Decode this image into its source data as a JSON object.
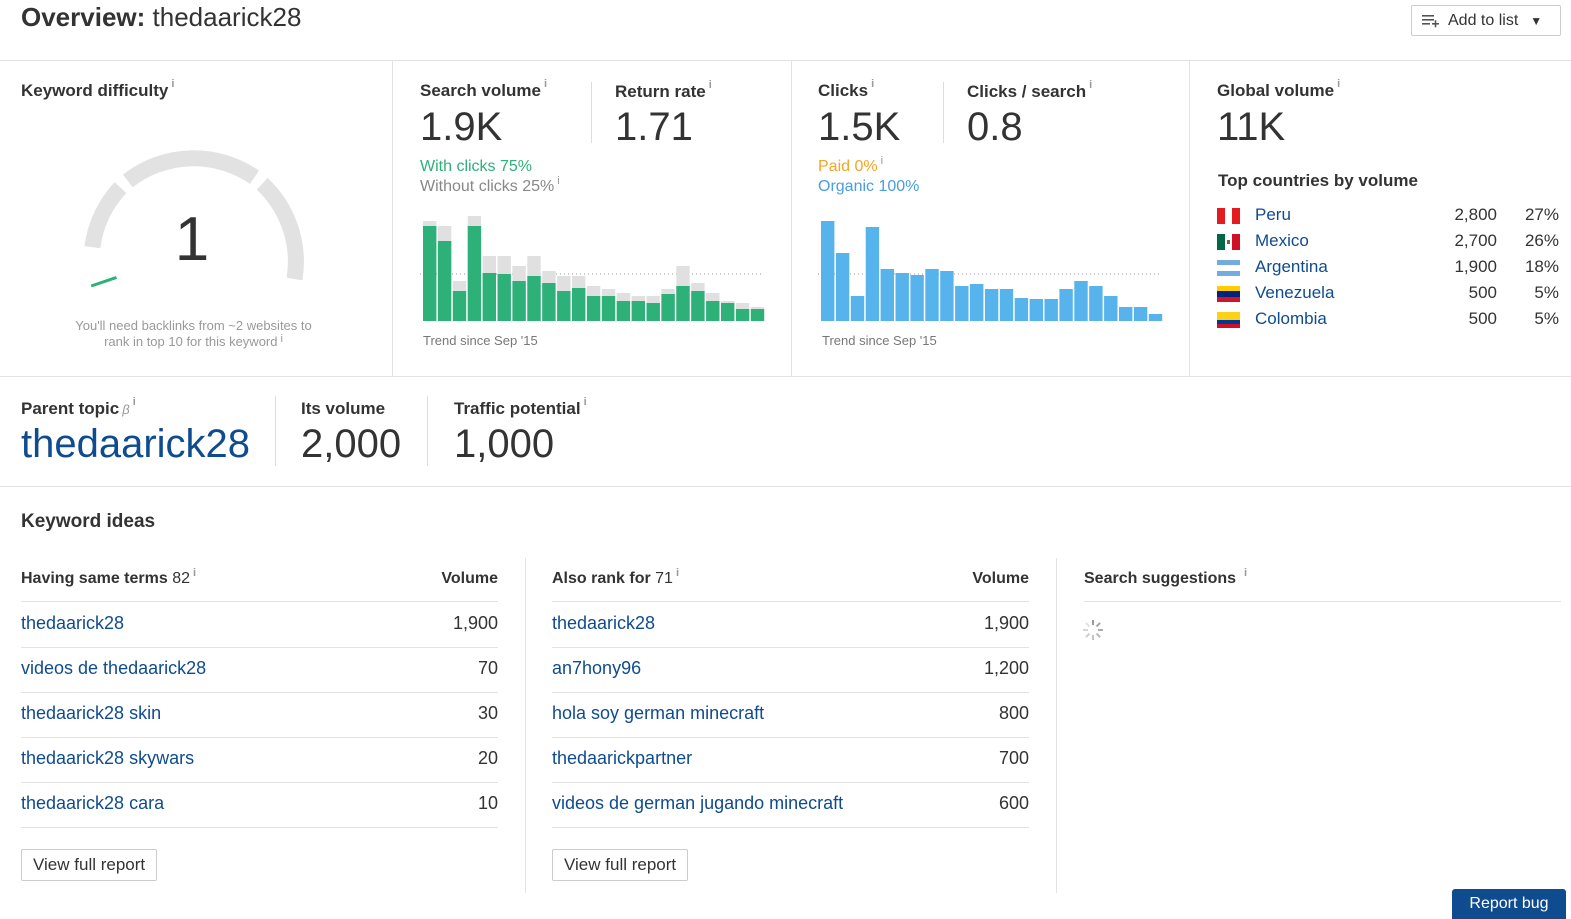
{
  "header": {
    "title_prefix": "Overview:",
    "title_keyword": "thedaarick28",
    "add_to_list_label": "Add to list"
  },
  "keyword_difficulty": {
    "label": "Keyword difficulty",
    "value": "1",
    "score": 1,
    "note_line1": "You'll need backlinks from ~2 websites to",
    "note_line2": "rank in top 10 for this keyword"
  },
  "search_volume": {
    "label": "Search volume",
    "value": "1.9K",
    "with_clicks": "With clicks 75%",
    "without_clicks": "Without clicks 25%",
    "trend_label": "Trend since Sep '15"
  },
  "return_rate": {
    "label": "Return rate",
    "value": "1.71"
  },
  "clicks": {
    "label": "Clicks",
    "value": "1.5K",
    "paid": "Paid 0%",
    "organic": "Organic 100%",
    "trend_label": "Trend since Sep '15"
  },
  "clicks_per_search": {
    "label": "Clicks / search",
    "value": "0.8"
  },
  "global_volume": {
    "label": "Global volume",
    "value": "11K",
    "countries_title": "Top countries by volume",
    "countries": [
      {
        "name": "Peru",
        "volume": "2,800",
        "percent": "27%",
        "flag": "peru-flag"
      },
      {
        "name": "Mexico",
        "volume": "2,700",
        "percent": "26%",
        "flag": "mexico-flag"
      },
      {
        "name": "Argentina",
        "volume": "1,900",
        "percent": "18%",
        "flag": "argentina-flag"
      },
      {
        "name": "Venezuela",
        "volume": "500",
        "percent": "5%",
        "flag": "venezuela-flag"
      },
      {
        "name": "Colombia",
        "volume": "500",
        "percent": "5%",
        "flag": "colombia-flag"
      }
    ]
  },
  "parent_topic": {
    "label": "Parent topic",
    "beta": "β",
    "value": "thedaarick28",
    "its_volume_label": "Its volume",
    "its_volume": "2,000",
    "traffic_potential_label": "Traffic potential",
    "traffic_potential": "1,000"
  },
  "keyword_ideas": {
    "title": "Keyword ideas",
    "same_terms": {
      "label": "Having same terms",
      "count": "82",
      "volume_header": "Volume",
      "rows": [
        {
          "keyword": "thedaarick28",
          "volume": "1,900"
        },
        {
          "keyword": "videos de thedaarick28",
          "volume": "70"
        },
        {
          "keyword": "thedaarick28 skin",
          "volume": "30"
        },
        {
          "keyword": "thedaarick28 skywars",
          "volume": "20"
        },
        {
          "keyword": "thedaarick28 cara",
          "volume": "10"
        }
      ],
      "button": "View full report"
    },
    "also_rank": {
      "label": "Also rank for",
      "count": "71",
      "volume_header": "Volume",
      "rows": [
        {
          "keyword": "thedaarick28",
          "volume": "1,900"
        },
        {
          "keyword": "an7hony96",
          "volume": "1,200"
        },
        {
          "keyword": "hola soy german minecraft",
          "volume": "800"
        },
        {
          "keyword": "thedaarickpartner",
          "volume": "700"
        },
        {
          "keyword": "videos de german jugando minecraft",
          "volume": "600"
        }
      ],
      "button": "View full report"
    },
    "suggestions": {
      "label": "Search suggestions"
    }
  },
  "report_bug": "Report bug",
  "colors": {
    "link": "#0f4b8f",
    "green": "#2eb079",
    "gray_bar": "#e0e0e0",
    "blue": "#56b3ec",
    "paid": "#f5a623",
    "organic": "#4a9de0"
  },
  "chart_data": [
    {
      "type": "bar",
      "name": "search-volume-trend",
      "x": "months since Sep '15",
      "series": [
        {
          "values": [
            95,
            80,
            30,
            95,
            48,
            47,
            40,
            45,
            38,
            30,
            33,
            25,
            25,
            20,
            20,
            18,
            27,
            35,
            30,
            20,
            18,
            12,
            12,
            8,
            6
          ]
        },
        {
          "values": [
            100,
            95,
            40,
            105,
            65,
            65,
            55,
            65,
            50,
            45,
            45,
            35,
            32,
            28,
            25,
            25,
            32,
            55,
            38,
            28,
            20,
            18,
            14,
            10,
            8
          ]
        }
      ]
    },
    {
      "type": "bar",
      "name": "clicks-trend",
      "x": "months since Sep '15",
      "series": [
        {
          "values": [
            100,
            68,
            25,
            94,
            52,
            48,
            46,
            52,
            50,
            35,
            37,
            32,
            32,
            23,
            22,
            22,
            32,
            40,
            35,
            25,
            14,
            14,
            7,
            7,
            5
          ]
        }
      ]
    }
  ]
}
